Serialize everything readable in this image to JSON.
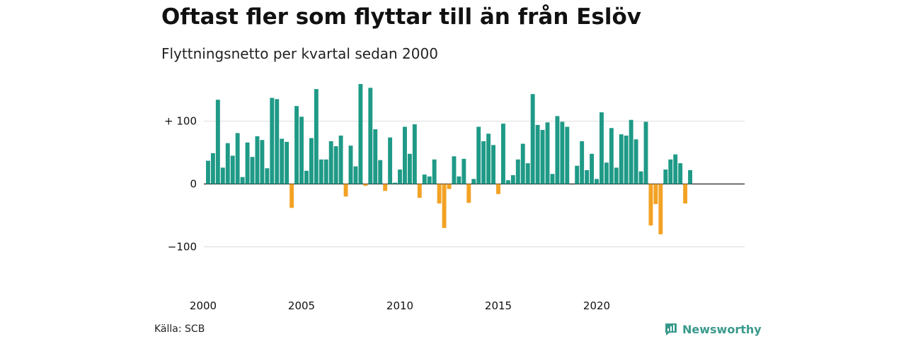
{
  "header": {
    "title": "Oftast fler som flyttar till än från Eslöv",
    "subtitle": "Flyttningsnetto per kvartal sedan 2000"
  },
  "footer": {
    "source": "Källa: SCB",
    "brand": "Newsworthy"
  },
  "colors": {
    "positive": "#1f9a87",
    "negative": "#f2a224",
    "grid": "#dddddd",
    "brand": "#3a9a8c"
  },
  "icons": {
    "brand_logo": "newsworthy-logo-icon"
  },
  "chart_data": {
    "type": "bar",
    "x_start": 2000,
    "ylim": [
      -150,
      160
    ],
    "y_ticks": [
      {
        "value": 100,
        "label": "+ 100"
      },
      {
        "value": 0,
        "label": "0"
      },
      {
        "value": -100,
        "label": "−100"
      }
    ],
    "x_ticks": [
      {
        "value": 2000,
        "label": "2000"
      },
      {
        "value": 2005,
        "label": "2005"
      },
      {
        "value": 2010,
        "label": "2010"
      },
      {
        "value": 2015,
        "label": "2015"
      },
      {
        "value": 2020,
        "label": "2020"
      }
    ],
    "values": [
      37,
      49,
      134,
      26,
      65,
      45,
      81,
      11,
      66,
      43,
      76,
      70,
      25,
      137,
      135,
      72,
      67,
      -38,
      124,
      107,
      21,
      73,
      151,
      39,
      39,
      68,
      60,
      77,
      -20,
      61,
      28,
      159,
      -3,
      153,
      87,
      38,
      -11,
      74,
      2,
      23,
      91,
      48,
      95,
      -22,
      15,
      12,
      39,
      -31,
      -70,
      -8,
      44,
      12,
      40,
      -30,
      8,
      91,
      68,
      80,
      62,
      -16,
      96,
      6,
      14,
      39,
      64,
      33,
      143,
      94,
      86,
      98,
      16,
      108,
      99,
      91,
      0,
      29,
      68,
      22,
      48,
      8,
      114,
      34,
      89,
      26,
      79,
      77,
      102,
      71,
      20,
      99,
      -66,
      -32,
      -80,
      23,
      39,
      47,
      33,
      -31,
      22
    ]
  }
}
